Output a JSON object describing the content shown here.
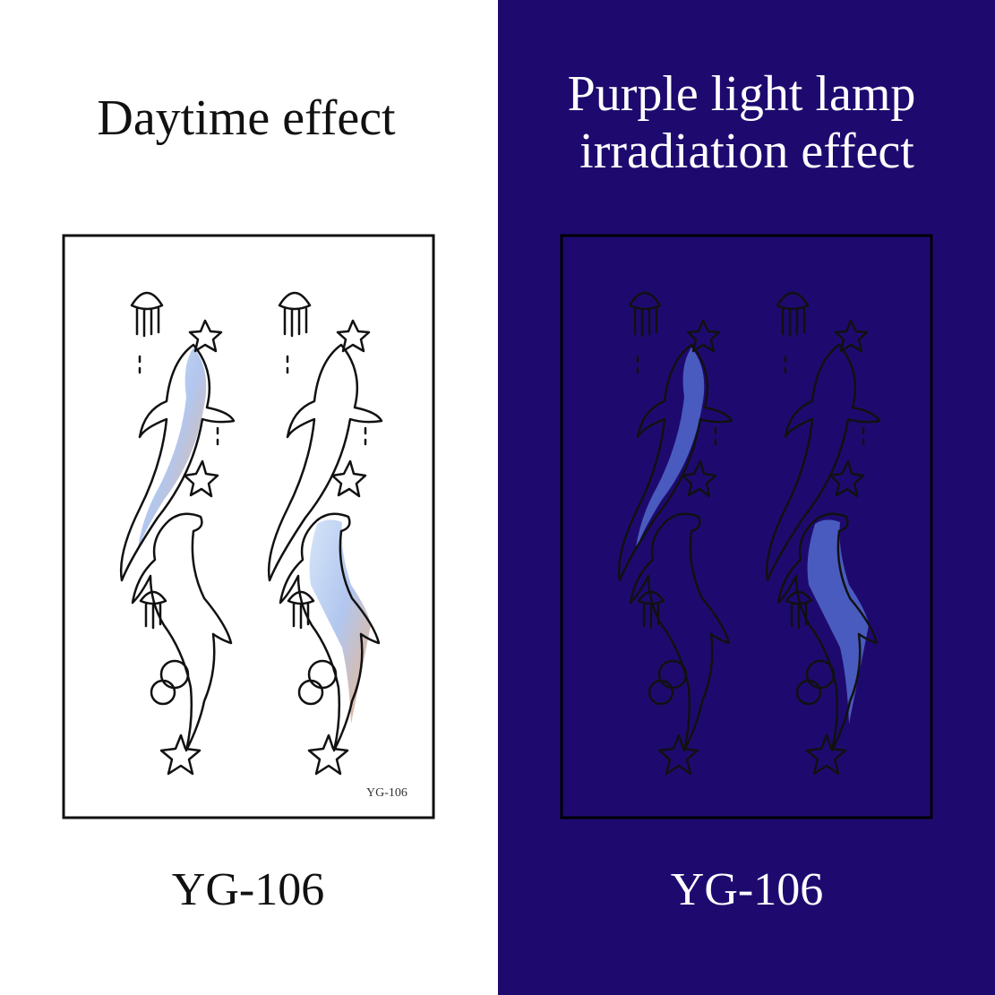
{
  "left": {
    "title": "Daytime effect",
    "card_code": "YG-106",
    "caption": "YG-106"
  },
  "right": {
    "title_lines": [
      "Purple light lamp",
      "irradiation effect"
    ],
    "caption": "YG-106"
  }
}
